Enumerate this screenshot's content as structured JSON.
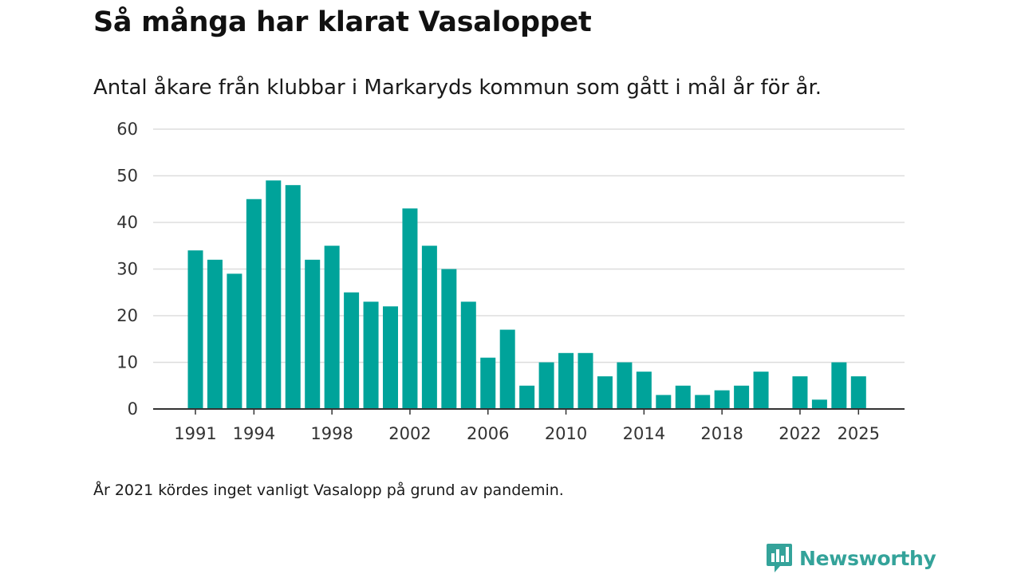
{
  "colors": {
    "bar": "#00a39a",
    "grid": "#dddddd",
    "axis": "#333333",
    "brand": "#34a39a"
  },
  "footnote": "År 2021 kördes inget vanligt Vasalopp på grund av pandemin.",
  "brand": {
    "name": "Newsworthy",
    "icon": "newsworthy-logo-icon"
  },
  "chart_data": {
    "type": "bar",
    "title": "Så många har klarat Vasaloppet",
    "subtitle": "Antal åkare från klubbar i Markaryds kommun som gått i mål år för år.",
    "xlabel": "",
    "ylabel": "",
    "ylim": [
      0,
      60
    ],
    "yticks": [
      0,
      10,
      20,
      30,
      40,
      50,
      60
    ],
    "xticks": [
      "1991",
      "1994",
      "1998",
      "2002",
      "2006",
      "2010",
      "2014",
      "2018",
      "2022",
      "2025"
    ],
    "grid": true,
    "categories": [
      "1991",
      "1992",
      "1993",
      "1994",
      "1995",
      "1996",
      "1997",
      "1998",
      "1999",
      "2000",
      "2001",
      "2002",
      "2003",
      "2004",
      "2005",
      "2006",
      "2007",
      "2008",
      "2009",
      "2010",
      "2011",
      "2012",
      "2013",
      "2014",
      "2015",
      "2016",
      "2017",
      "2018",
      "2019",
      "2020",
      "2021",
      "2022",
      "2023",
      "2024",
      "2025"
    ],
    "values": [
      34,
      32,
      29,
      45,
      49,
      48,
      32,
      35,
      25,
      23,
      22,
      43,
      35,
      30,
      23,
      11,
      17,
      5,
      10,
      12,
      12,
      7,
      10,
      8,
      3,
      5,
      3,
      4,
      5,
      8,
      null,
      7,
      2,
      10,
      7
    ]
  }
}
